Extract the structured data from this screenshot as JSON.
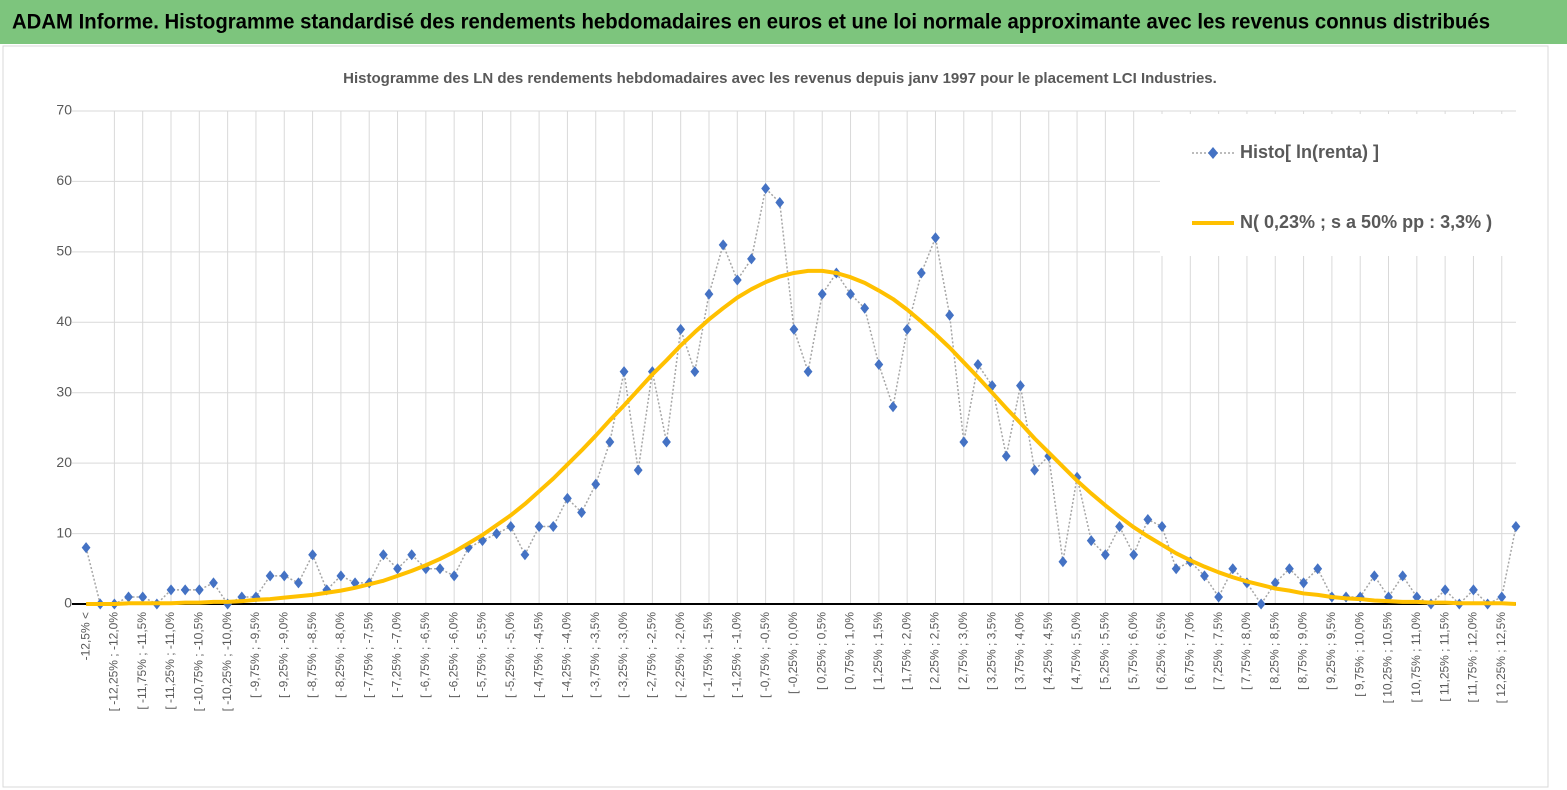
{
  "header": {
    "title": "ADAM Informe. Histogramme standardisé des rendements hebdomadaires en euros et une loi normale approximante avec les revenus connus distribués"
  },
  "chart_data": {
    "type": "line",
    "title": "Histogramme des LN des rendements hebdomadaires avec les revenus depuis janv 1997 pour le placement LCI Industries.",
    "categories": [
      "-12,5% <",
      null,
      "[ -12,25% ; -12,0%",
      null,
      "[ -11,75% ; -11,5%",
      null,
      "[ -11,25% ; -11,0%",
      null,
      "[ -10,75% ; -10,5%",
      null,
      "[ -10,25% ; -10,0%",
      null,
      "[ -9,75% ; -9,5%",
      null,
      "[ -9,25% ; -9,0%",
      null,
      "[ -8,75% ; -8,5%",
      null,
      "[ -8,25% ; -8,0%",
      null,
      "[ -7,75% ; -7,5%",
      null,
      "[ -7,25% ; -7,0%",
      null,
      "[ -6,75% ; -6,5%",
      null,
      "[ -6,25% ; -6,0%",
      null,
      "[ -5,75% ; -5,5%",
      null,
      "[ -5,25% ; -5,0%",
      null,
      "[ -4,75% ; -4,5%",
      null,
      "[ -4,25% ; -4,0%",
      null,
      "[ -3,75% ; -3,5%",
      null,
      "[ -3,25% ; -3,0%",
      null,
      "[ -2,75% ; -2,5%",
      null,
      "[ -2,25% ; -2,0%",
      null,
      "[ -1,75% ; -1,5%",
      null,
      "[ -1,25% ; -1,0%",
      null,
      "[ -0,75% ; -0,5%",
      null,
      "[ -0,25% ; 0,0%",
      null,
      "[ 0,25% ; 0,5%",
      null,
      "[ 0,75% ; 1,0%",
      null,
      "[ 1,25% ; 1,5%",
      null,
      "[ 1,75% ; 2,0%",
      null,
      "[ 2,25% ; 2,5%",
      null,
      "[ 2,75% ; 3,0%",
      null,
      "[ 3,25% ; 3,5%",
      null,
      "[ 3,75% ; 4,0%",
      null,
      "[ 4,25% ; 4,5%",
      null,
      "[ 4,75% ; 5,0%",
      null,
      "[ 5,25% ; 5,5%",
      null,
      "[ 5,75% ; 6,0%",
      null,
      "[ 6,25% ; 6,5%",
      null,
      "[ 6,75% ; 7,0%",
      null,
      "[ 7,25% ; 7,5%",
      null,
      "[ 7,75% ; 8,0%",
      null,
      "[ 8,25% ; 8,5%",
      null,
      "[ 8,75% ; 9,0%",
      null,
      "[ 9,25% ; 9,5%",
      null,
      "[ 9,75% ; 10,0%",
      null,
      "[ 10,25% ; 10,5%",
      null,
      "[ 10,75% ; 11,0%",
      null,
      "[ 11,25% ; 11,5%",
      null,
      "[ 11,75% ; 12,0%",
      null,
      "[ 12,25% ; 12,5%",
      null
    ],
    "series": [
      {
        "name": "Histo[ ln(renta) ]",
        "color": "#4472c4",
        "line_color": "#a6a6a6",
        "line_style": "dotted",
        "marker": "diamond",
        "values": [
          8,
          0,
          0,
          1,
          1,
          0,
          2,
          2,
          2,
          3,
          0,
          1,
          1,
          4,
          4,
          3,
          7,
          2,
          4,
          3,
          3,
          7,
          5,
          7,
          5,
          5,
          4,
          8,
          9,
          10,
          11,
          7,
          11,
          11,
          15,
          13,
          17,
          23,
          33,
          19,
          33,
          23,
          39,
          33,
          44,
          51,
          46,
          49,
          59,
          57,
          39,
          33,
          44,
          47,
          44,
          42,
          34,
          28,
          39,
          47,
          52,
          41,
          23,
          34,
          31,
          21,
          31,
          19,
          21,
          6,
          18,
          9,
          7,
          11,
          7,
          12,
          11,
          5,
          6,
          4,
          1,
          5,
          3,
          0,
          3,
          5,
          3,
          5,
          1,
          1,
          1,
          4,
          1,
          4,
          1,
          0,
          2,
          0,
          2,
          0,
          1,
          11
        ]
      },
      {
        "name": "N( 0,23% ; s a 50% pp : 3,3% )",
        "color": "#ffc000",
        "line_style": "solid",
        "marker": "none",
        "values": [
          0,
          0,
          0,
          0.1,
          0.1,
          0.1,
          0.1,
          0.2,
          0.2,
          0.3,
          0.3,
          0.4,
          0.6,
          0.7,
          0.9,
          1.1,
          1.3,
          1.6,
          1.9,
          2.3,
          2.8,
          3.3,
          4,
          4.7,
          5.5,
          6.4,
          7.4,
          8.6,
          9.8,
          11.2,
          12.6,
          14.2,
          16,
          17.8,
          19.8,
          21.8,
          23.9,
          26.1,
          28.2,
          30.4,
          32.6,
          34.6,
          36.7,
          38.6,
          40.4,
          42,
          43.5,
          44.7,
          45.7,
          46.5,
          47,
          47.3,
          47.3,
          47,
          46.4,
          45.6,
          44.5,
          43.3,
          41.8,
          40.1,
          38.3,
          36.4,
          34.3,
          32.2,
          30,
          27.8,
          25.7,
          23.5,
          21.5,
          19.5,
          17.5,
          15.7,
          14,
          12.4,
          10.9,
          9.6,
          8.4,
          7.2,
          6.2,
          5.3,
          4.5,
          3.8,
          3.2,
          2.7,
          2.2,
          1.9,
          1.5,
          1.3,
          1,
          0.8,
          0.7,
          0.5,
          0.4,
          0.3,
          0.3,
          0.2,
          0.2,
          0.1,
          0.1,
          0.1,
          0.1,
          0
        ]
      }
    ],
    "ylim": [
      0,
      70
    ],
    "yticks": [
      0,
      10,
      20,
      30,
      40,
      50,
      60,
      70
    ],
    "grid": true,
    "legend": "top-right"
  }
}
